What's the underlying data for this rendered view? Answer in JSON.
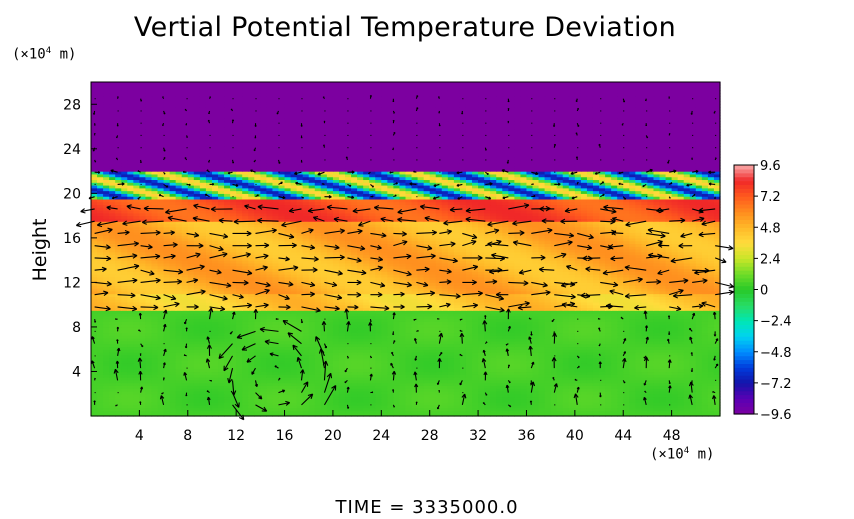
{
  "chart_data": {
    "type": "heatmap",
    "title": "Vertial Potential Temperature Deviation",
    "ylabel": "Height",
    "x_unit": "(×10⁴ m)",
    "y_unit": "(×10⁴ m)",
    "xlim": [
      0,
      52
    ],
    "ylim": [
      0,
      30
    ],
    "x_ticks": [
      4,
      8,
      12,
      16,
      20,
      24,
      28,
      32,
      36,
      40,
      44,
      48
    ],
    "y_ticks": [
      4,
      8,
      12,
      16,
      20,
      24,
      28
    ],
    "colorbar": {
      "min": -9.6,
      "max": 9.6,
      "tick_values": [
        9.6,
        7.2,
        4.8,
        2.4,
        0,
        -2.4,
        -4.8,
        -7.2,
        -9.6
      ],
      "tick_labels": [
        "9.6",
        "7.2",
        "4.8",
        "2.4",
        "0",
        "−2.4",
        "−4.8",
        "−7.2",
        "−9.6"
      ]
    },
    "layers": [
      {
        "name": "lower",
        "y_range": [
          0,
          9.5
        ],
        "value": 0.5
      },
      {
        "name": "middle",
        "y_range": [
          9.5,
          19.5
        ],
        "value": 5.0
      },
      {
        "name": "upper-warm",
        "y_range": [
          17.5,
          19.5
        ],
        "value": 7.5
      },
      {
        "name": "transition",
        "y_range": [
          19.5,
          22.0
        ],
        "value": -5.5
      },
      {
        "name": "upper",
        "y_range": [
          22.0,
          30.0
        ],
        "value": -9.6
      }
    ],
    "vector_field": "wind vectors overlaid on grid, strongest near 12–18 height band"
  },
  "footer": {
    "time_label": "TIME  =  3335000.0"
  }
}
